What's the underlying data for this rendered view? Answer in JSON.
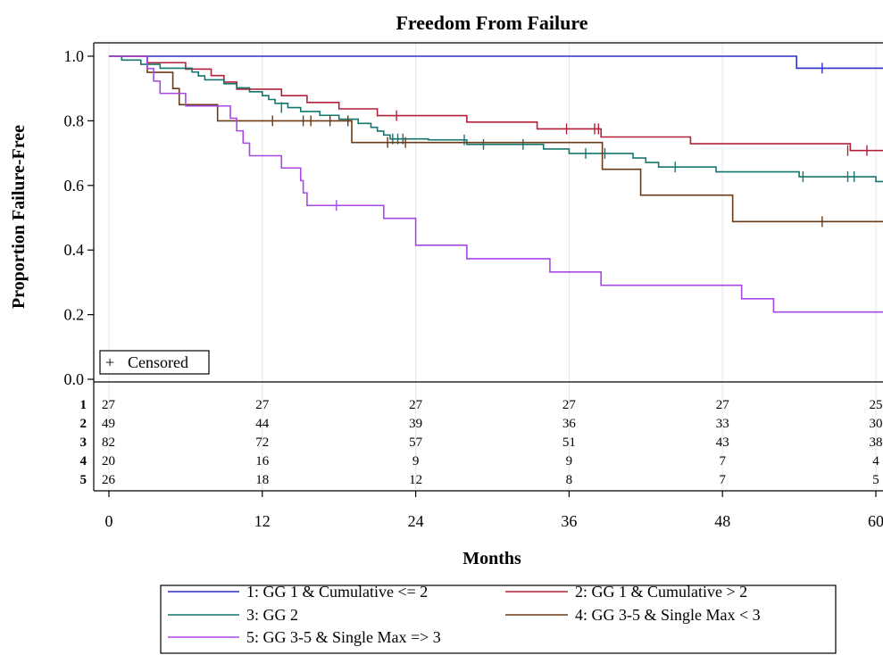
{
  "chart_data": {
    "type": "line",
    "subtype": "kaplan-meier step",
    "title": "Freedom From Failure",
    "xlabel": "Months",
    "ylabel": "Proportion Failure-Free",
    "xlim": [
      0,
      60
    ],
    "ylim": [
      0,
      1
    ],
    "x_ticks": [
      "0",
      "12",
      "24",
      "36",
      "48",
      "60"
    ],
    "y_ticks": [
      "0.0",
      "0.2",
      "0.4",
      "0.6",
      "0.8",
      "1.0"
    ],
    "grid": "vertical",
    "censored_label": "Censored",
    "censored_marker": "+",
    "series": [
      {
        "name": "1: GG 1 & Cumulative <= 2",
        "color": "#2e2ecc",
        "steps": [
          [
            0,
            1.0
          ],
          [
            53.8,
            0.963
          ]
        ],
        "censored": [
          [
            55.8,
            0.963
          ]
        ]
      },
      {
        "name": "2: GG 1 & Cumulative > 2",
        "color": "#b3203a",
        "steps": [
          [
            0,
            1.0
          ],
          [
            3.0,
            0.98
          ],
          [
            6.0,
            0.96
          ],
          [
            8.0,
            0.94
          ],
          [
            9.0,
            0.92
          ],
          [
            10.0,
            0.898
          ],
          [
            13.5,
            0.878
          ],
          [
            15.5,
            0.857
          ],
          [
            18.0,
            0.837
          ],
          [
            21.0,
            0.816
          ],
          [
            28.0,
            0.796
          ],
          [
            33.5,
            0.775
          ],
          [
            38.5,
            0.75
          ],
          [
            45.5,
            0.729
          ],
          [
            58.0,
            0.708
          ]
        ],
        "censored": [
          [
            22.5,
            0.816
          ],
          [
            35.8,
            0.775
          ],
          [
            38.0,
            0.775
          ],
          [
            38.3,
            0.775
          ],
          [
            57.8,
            0.708
          ],
          [
            59.3,
            0.708
          ]
        ]
      },
      {
        "name": "3: GG 2",
        "color": "#14766e",
        "steps": [
          [
            0,
            1.0
          ],
          [
            1.0,
            0.988
          ],
          [
            2.5,
            0.975
          ],
          [
            4.0,
            0.963
          ],
          [
            6.5,
            0.951
          ],
          [
            7.0,
            0.939
          ],
          [
            7.5,
            0.927
          ],
          [
            9.0,
            0.915
          ],
          [
            10.0,
            0.902
          ],
          [
            11.0,
            0.89
          ],
          [
            12.0,
            0.878
          ],
          [
            12.5,
            0.866
          ],
          [
            13.0,
            0.854
          ],
          [
            14.0,
            0.841
          ],
          [
            15.0,
            0.829
          ],
          [
            16.5,
            0.817
          ],
          [
            18.0,
            0.805
          ],
          [
            19.5,
            0.792
          ],
          [
            20.5,
            0.78
          ],
          [
            21.0,
            0.768
          ],
          [
            21.5,
            0.756
          ],
          [
            22.0,
            0.744
          ],
          [
            25.0,
            0.741
          ],
          [
            28.0,
            0.727
          ],
          [
            34.0,
            0.713
          ],
          [
            36.0,
            0.699
          ],
          [
            37.0,
            0.699
          ],
          [
            41.0,
            0.685
          ],
          [
            42.0,
            0.671
          ],
          [
            43.0,
            0.657
          ],
          [
            47.5,
            0.642
          ],
          [
            54.0,
            0.627
          ],
          [
            60.0,
            0.612
          ]
        ],
        "censored": [
          [
            13.5,
            0.841
          ],
          [
            22.2,
            0.744
          ],
          [
            22.6,
            0.744
          ],
          [
            23.0,
            0.744
          ],
          [
            27.8,
            0.741
          ],
          [
            29.3,
            0.727
          ],
          [
            32.4,
            0.727
          ],
          [
            37.3,
            0.699
          ],
          [
            38.8,
            0.699
          ],
          [
            44.3,
            0.657
          ],
          [
            54.3,
            0.627
          ],
          [
            57.8,
            0.627
          ],
          [
            58.3,
            0.627
          ]
        ]
      },
      {
        "name": "4: GG 3-5 & Single Max < 3",
        "color": "#6b3a16",
        "steps": [
          [
            0,
            1.0
          ],
          [
            3.0,
            0.95
          ],
          [
            5.0,
            0.9
          ],
          [
            5.5,
            0.85
          ],
          [
            8.5,
            0.8
          ],
          [
            19.0,
            0.733
          ],
          [
            38.6,
            0.65
          ],
          [
            41.6,
            0.57
          ],
          [
            48.8,
            0.488
          ]
        ],
        "censored": [
          [
            12.8,
            0.8
          ],
          [
            15.2,
            0.8
          ],
          [
            15.8,
            0.8
          ],
          [
            17.3,
            0.8
          ],
          [
            18.7,
            0.8
          ],
          [
            21.8,
            0.733
          ],
          [
            23.2,
            0.733
          ],
          [
            55.8,
            0.488
          ]
        ]
      },
      {
        "name": "5: GG 3-5 & Single Max => 3",
        "color": "#a747e8",
        "steps": [
          [
            0,
            1.0
          ],
          [
            3.0,
            0.962
          ],
          [
            3.5,
            0.923
          ],
          [
            4.0,
            0.885
          ],
          [
            6.0,
            0.846
          ],
          [
            9.5,
            0.808
          ],
          [
            10.0,
            0.769
          ],
          [
            10.5,
            0.731
          ],
          [
            11.0,
            0.692
          ],
          [
            13.5,
            0.654
          ],
          [
            15.0,
            0.615
          ],
          [
            15.2,
            0.577
          ],
          [
            15.5,
            0.538
          ],
          [
            21.5,
            0.498
          ],
          [
            24.0,
            0.415
          ],
          [
            28.0,
            0.373
          ],
          [
            34.5,
            0.332
          ],
          [
            38.5,
            0.291
          ],
          [
            49.5,
            0.249
          ],
          [
            52.0,
            0.208
          ]
        ],
        "censored": [
          [
            17.8,
            0.538
          ]
        ]
      }
    ],
    "at_risk": {
      "times": [
        0,
        12,
        24,
        36,
        48,
        60
      ],
      "rows": [
        {
          "label": "1",
          "counts": [
            "27",
            "27",
            "27",
            "27",
            "27",
            "25"
          ]
        },
        {
          "label": "2",
          "counts": [
            "49",
            "44",
            "39",
            "36",
            "33",
            "30"
          ]
        },
        {
          "label": "3",
          "counts": [
            "82",
            "72",
            "57",
            "51",
            "43",
            "38"
          ]
        },
        {
          "label": "4",
          "counts": [
            "20",
            "16",
            "9",
            "9",
            "7",
            "4"
          ]
        },
        {
          "label": "5",
          "counts": [
            "26",
            "18",
            "12",
            "8",
            "7",
            "5"
          ]
        }
      ]
    },
    "legend_position": "bottom"
  }
}
